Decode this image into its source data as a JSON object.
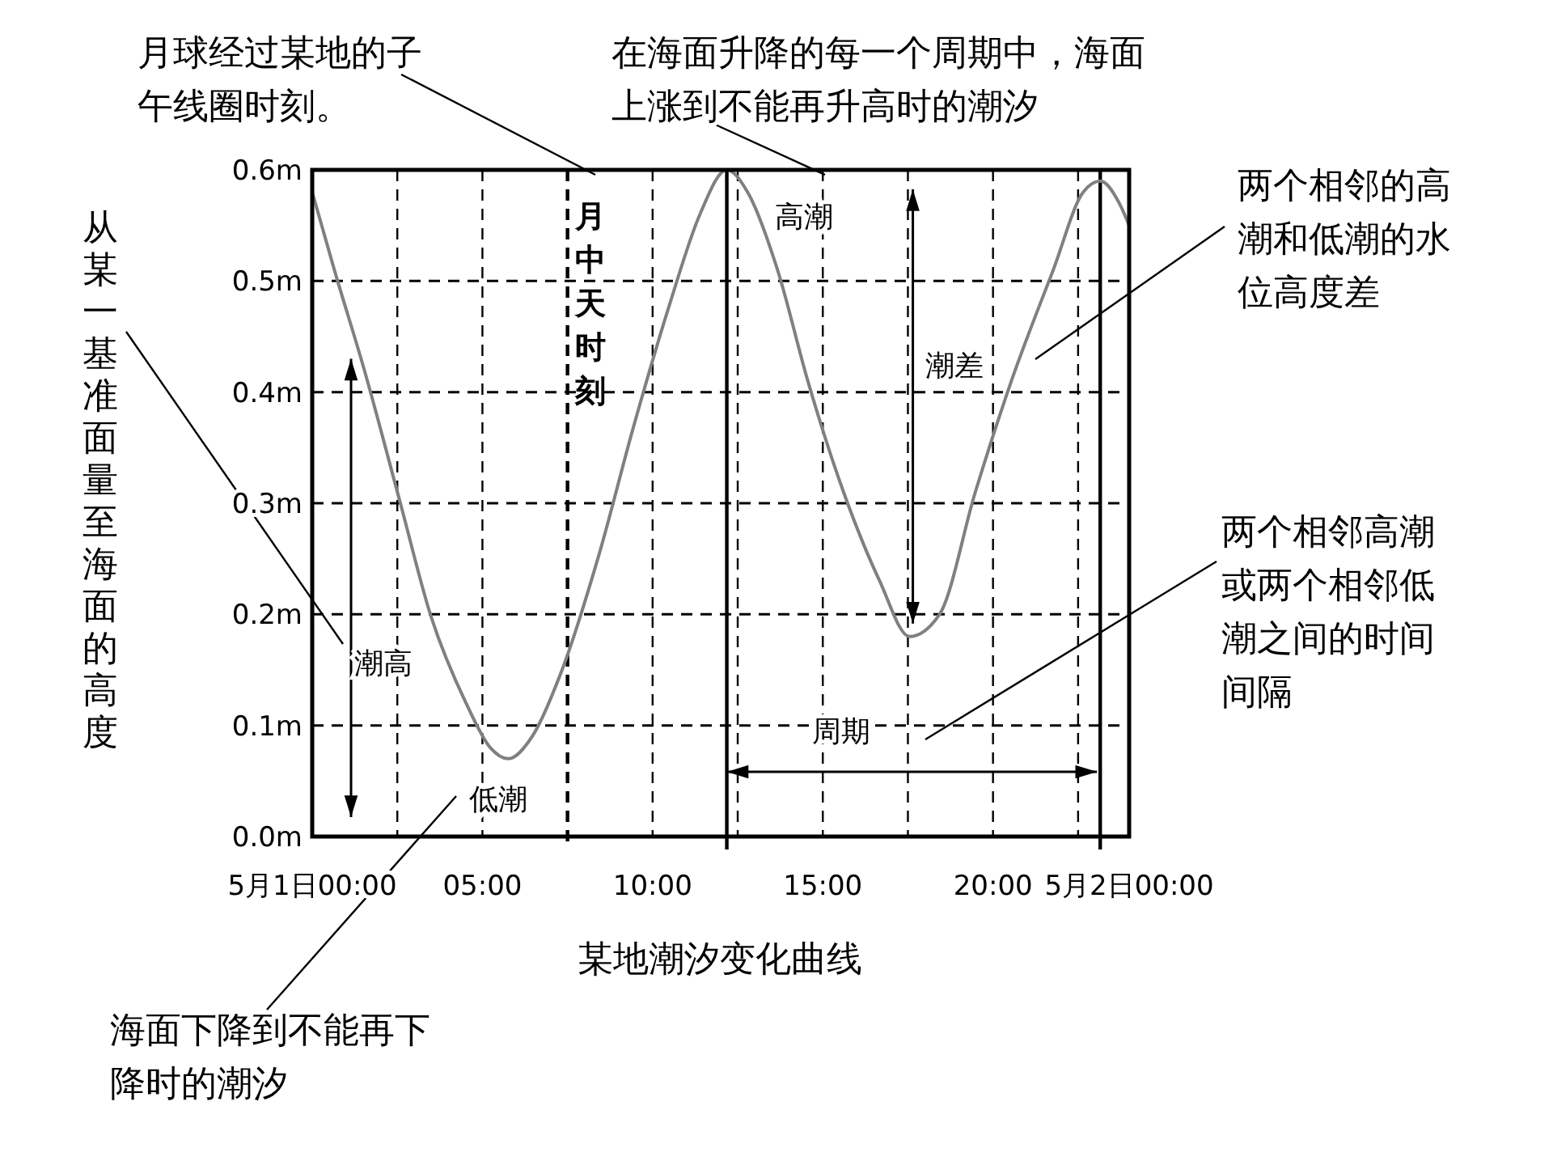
{
  "chart_data": {
    "type": "line",
    "title": "某地潮汐变化曲线",
    "x": [
      0,
      0.65,
      1.53,
      2.59,
      3.47,
      4.52,
      5.23,
      5.76,
      6.46,
      7.34,
      8.39,
      9.45,
      10.51,
      11.39,
      12.18,
      12.79,
      13.67,
      14.56,
      15.61,
      16.67,
      17.55,
      18.43,
      19.48,
      20.54,
      21.77,
      22.65,
      23.15,
      23.71,
      24
    ],
    "series": [
      {
        "color": "#808080",
        "values": [
          0.58,
          0.51,
          0.42,
          0.3,
          0.2,
          0.12,
          0.08,
          0.07,
          0.09,
          0.15,
          0.25,
          0.37,
          0.48,
          0.56,
          0.6,
          0.58,
          0.51,
          0.41,
          0.31,
          0.23,
          0.18,
          0.2,
          0.31,
          0.41,
          0.51,
          0.58,
          0.59,
          0.57,
          0.55
        ]
      }
    ],
    "xlim": [
      0,
      24
    ],
    "xticks": [
      {
        "value": 0,
        "label": "5月1日00:00"
      },
      {
        "value": 2.5,
        "label": null
      },
      {
        "value": 5,
        "label": "05:00"
      },
      {
        "value": 7.5,
        "label": null
      },
      {
        "value": 10,
        "label": "10:00"
      },
      {
        "value": 12.5,
        "label": null
      },
      {
        "value": 15,
        "label": "15:00"
      },
      {
        "value": 17.5,
        "label": null
      },
      {
        "value": 20,
        "label": "20:00"
      },
      {
        "value": 22.5,
        "label": null
      },
      {
        "value": 24,
        "label": "5月2日00:00"
      }
    ],
    "ylim": [
      0,
      0.6
    ],
    "yticks": [
      {
        "value": 0,
        "label": "0.0m"
      },
      {
        "value": 0.1,
        "label": "0.1m"
      },
      {
        "value": 0.2,
        "label": "0.2m"
      },
      {
        "value": 0.3,
        "label": "0.3m"
      },
      {
        "value": 0.4,
        "label": "0.4m"
      },
      {
        "value": 0.5,
        "label": "0.5m"
      },
      {
        "value": 0.6,
        "label": "0.6m"
      }
    ],
    "grid": true,
    "line_style": "solid",
    "ref_lines": [
      {
        "axis": "x",
        "value": 7.5,
        "label": "月中天时刻",
        "line_style": "dashed",
        "color": "#000000"
      },
      {
        "axis": "x",
        "value": 12.18,
        "line_style": "solid",
        "color": "#000000"
      },
      {
        "axis": "x",
        "value": 23.15,
        "line_style": "solid",
        "color": "#000000"
      }
    ],
    "annotations": [
      "月球经过某地的子午线圈时刻。",
      "在海面升降的每一个周期中，海面上涨到不能再升高时的潮汐",
      "两个相邻的高潮和低潮的水位高度差",
      "两个相邻高潮或两个相邻低潮之间的时间间隔",
      "海面下降到不能再下降时的潮汐",
      "从某一基准面量至海面的高度",
      "高潮",
      "低潮",
      "潮高",
      "潮差",
      "周期"
    ]
  }
}
